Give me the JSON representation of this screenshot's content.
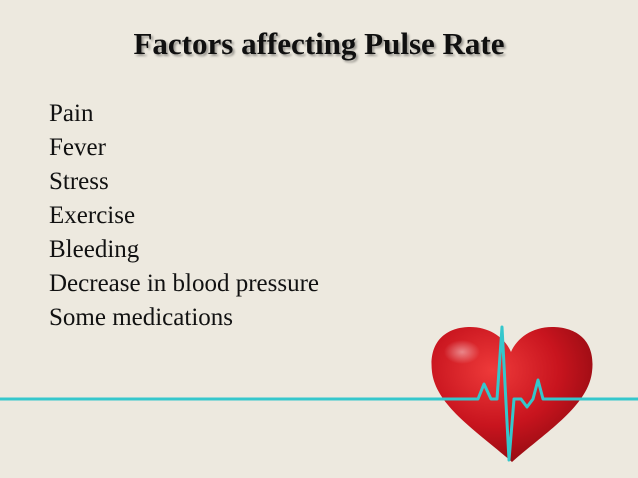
{
  "slide": {
    "title": "Factors affecting Pulse Rate",
    "bullets": [
      "Pain",
      "Fever",
      "Stress",
      "Exercise",
      "Bleeding",
      "Decrease in blood pressure",
      "Some medications"
    ]
  },
  "graphic": {
    "icon": "heart-pulse-icon",
    "heart_color": "#c8141e",
    "ecg_line_color": "#35c7cc"
  }
}
